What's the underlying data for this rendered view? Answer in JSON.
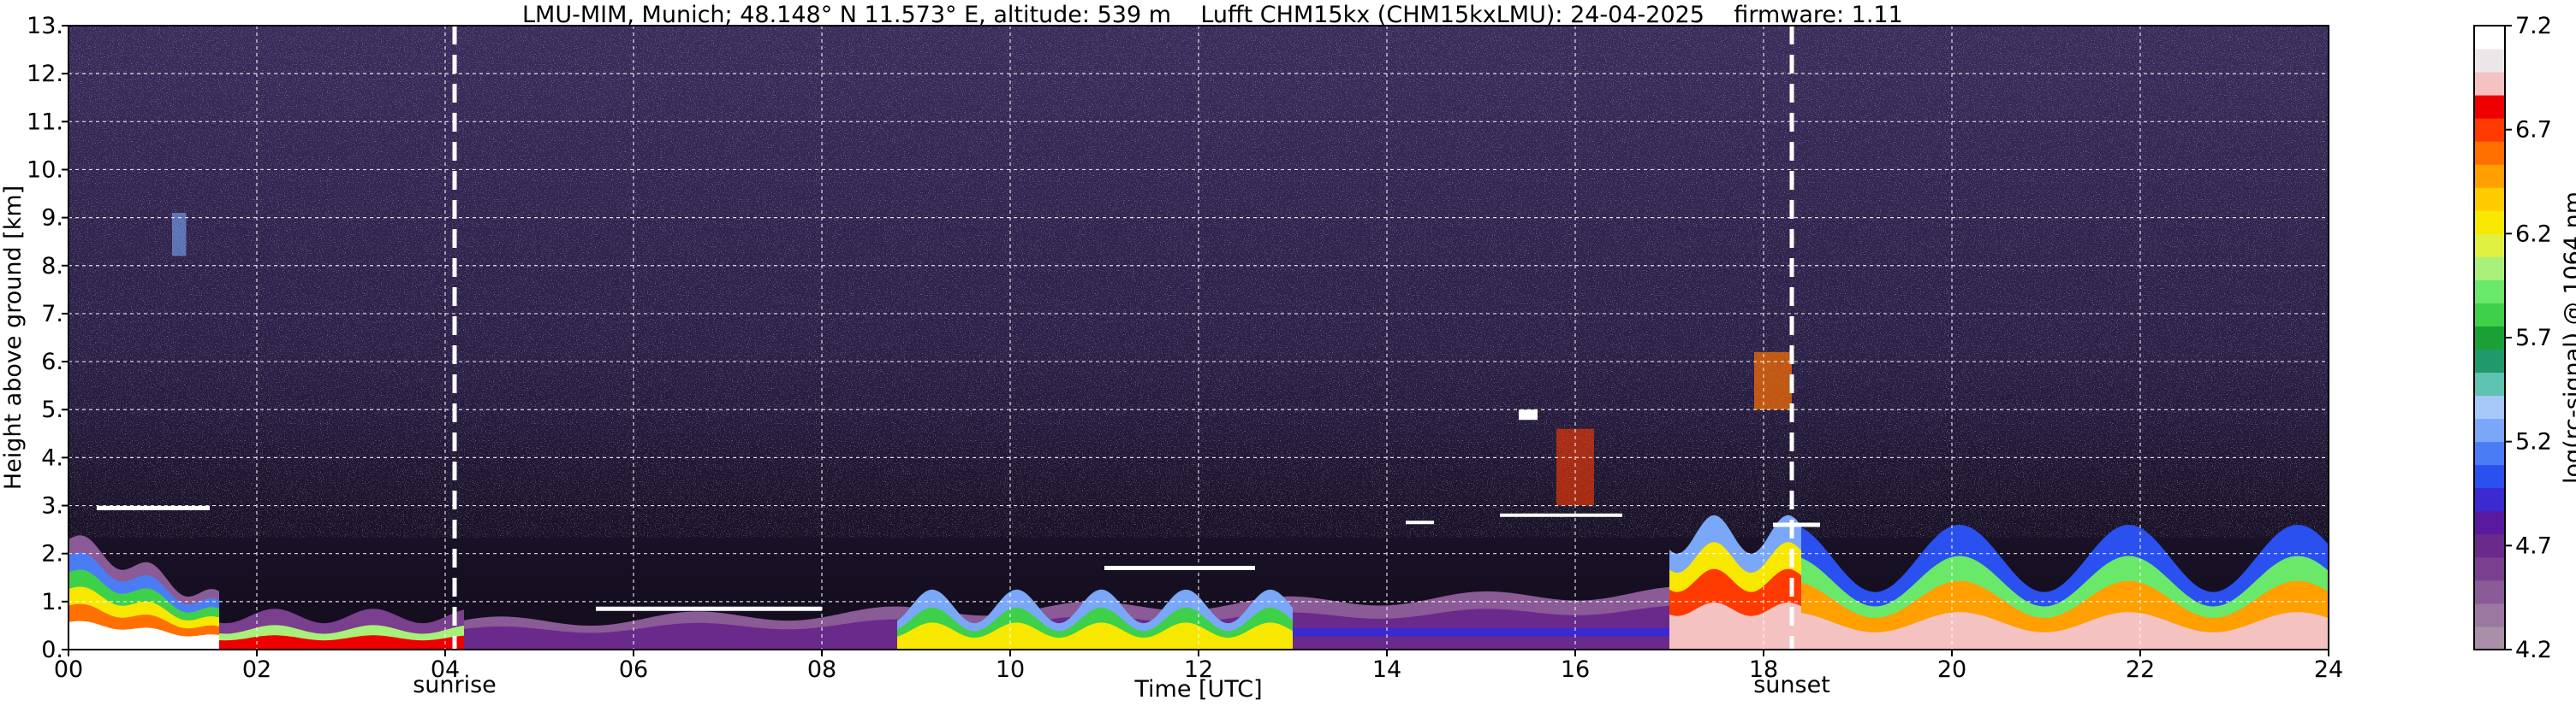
{
  "chart_data": {
    "type": "heatmap",
    "title": "LMU-MIM, Munich; 48.148° N 11.573° E, altitude: 539 m    Lufft CHM15kx (CHM15kxLMU): 24-04-2025    firmware: 1.11",
    "xlabel": "Time [UTC]",
    "ylabel": "Height above ground [km]",
    "colorbar_label": "log(rc-signal) @ 1064 nm",
    "xlim": [
      0,
      24
    ],
    "ylim": [
      0,
      13
    ],
    "xticks": [
      0,
      2,
      4,
      6,
      8,
      10,
      12,
      14,
      16,
      18,
      20,
      22,
      24
    ],
    "xtick_labels": [
      "00",
      "02",
      "04",
      "06",
      "08",
      "10",
      "12",
      "14",
      "16",
      "18",
      "20",
      "22",
      "24"
    ],
    "yticks": [
      0,
      1,
      2,
      3,
      4,
      5,
      6,
      7,
      8,
      9,
      10,
      11,
      12,
      13
    ],
    "ytick_labels": [
      "0.",
      "1.",
      "2.",
      "3.",
      "4.",
      "5.",
      "6.",
      "7.",
      "8.",
      "9.",
      "10.",
      "11.",
      "12.",
      "13."
    ],
    "colorbar_range": [
      4.2,
      7.2
    ],
    "colorbar_ticks": [
      4.2,
      4.7,
      5.2,
      5.7,
      6.2,
      6.7,
      7.2
    ],
    "colorbar_tick_labels": [
      "4.2",
      "4.7",
      "5.2",
      "5.7",
      "6.2",
      "6.7",
      "7.2"
    ],
    "grid": true,
    "annotations": [
      {
        "label": "sunrise",
        "x": 4.1
      },
      {
        "label": "sunset",
        "x": 18.3
      }
    ],
    "colormap": [
      "#a98fa8",
      "#9b78a0",
      "#8a5b96",
      "#7a3f8e",
      "#6a2a8c",
      "#5a1aa0",
      "#3a2ad0",
      "#2a50f0",
      "#4a7df5",
      "#7aa7f7",
      "#a6c8f8",
      "#5ec3b0",
      "#1f9a6a",
      "#1aa035",
      "#3fd04a",
      "#6ae86a",
      "#a8f07a",
      "#e0f040",
      "#f8e800",
      "#ffcc00",
      "#ffa000",
      "#ff7000",
      "#ff3a00",
      "#ee0000",
      "#f5c2c2",
      "#ece6e8",
      "#ffffff"
    ]
  }
}
